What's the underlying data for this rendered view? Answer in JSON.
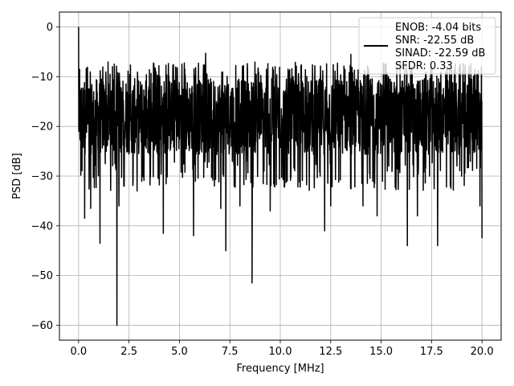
{
  "chart_data": {
    "type": "line",
    "title": "",
    "xlabel": "Frequency [MHz]",
    "ylabel": "PSD [dB]",
    "xlim": [
      -0.95,
      20.95
    ],
    "ylim": [
      -63,
      3
    ],
    "xticks": [
      0.0,
      2.5,
      5.0,
      7.5,
      10.0,
      12.5,
      15.0,
      17.5,
      20.0
    ],
    "xtick_labels": [
      "0.0",
      "2.5",
      "5.0",
      "7.5",
      "10.0",
      "12.5",
      "15.0",
      "17.5",
      "20.0"
    ],
    "yticks": [
      0,
      -10,
      -20,
      -30,
      -40,
      -50,
      -60
    ],
    "ytick_labels": [
      "0",
      "−10",
      "−20",
      "−30",
      "−40",
      "−50",
      "−60"
    ],
    "grid": true,
    "legend_location": "top-right",
    "legend_lines": [
      "ENOB: -4.04 bits",
      "SNR: -22.55 dB",
      "SINAD: -22.59 dB",
      "SFDR: 0.33"
    ],
    "series": [
      {
        "color": "#000000",
        "x_range": [
          0,
          20
        ],
        "peak": {
          "x": 0.0,
          "y": 0.0
        },
        "noise_band": {
          "upper": -10,
          "lower": -27,
          "median": -18
        },
        "notable_points": [
          {
            "x": 0.05,
            "y": -8.5
          },
          {
            "x": 0.3,
            "y": -38.5
          },
          {
            "x": 0.6,
            "y": -36.5
          },
          {
            "x": 1.06,
            "y": -43.5
          },
          {
            "x": 1.9,
            "y": -60.0
          },
          {
            "x": 2.0,
            "y": -36.0
          },
          {
            "x": 2.9,
            "y": -33.0
          },
          {
            "x": 4.2,
            "y": -41.5
          },
          {
            "x": 5.7,
            "y": -42.0
          },
          {
            "x": 6.3,
            "y": -5.3
          },
          {
            "x": 7.05,
            "y": -36.5
          },
          {
            "x": 7.3,
            "y": -45.0
          },
          {
            "x": 8.0,
            "y": -36.0
          },
          {
            "x": 8.6,
            "y": -51.5
          },
          {
            "x": 9.5,
            "y": -37.0
          },
          {
            "x": 12.2,
            "y": -41.0
          },
          {
            "x": 12.5,
            "y": -36.0
          },
          {
            "x": 13.5,
            "y": -5.5
          },
          {
            "x": 14.1,
            "y": -36.0
          },
          {
            "x": 14.8,
            "y": -38.0
          },
          {
            "x": 16.3,
            "y": -44.0
          },
          {
            "x": 16.8,
            "y": -38.0
          },
          {
            "x": 17.8,
            "y": -44.0
          },
          {
            "x": 19.9,
            "y": -36.0
          },
          {
            "x": 20.0,
            "y": -42.5
          }
        ]
      }
    ]
  }
}
